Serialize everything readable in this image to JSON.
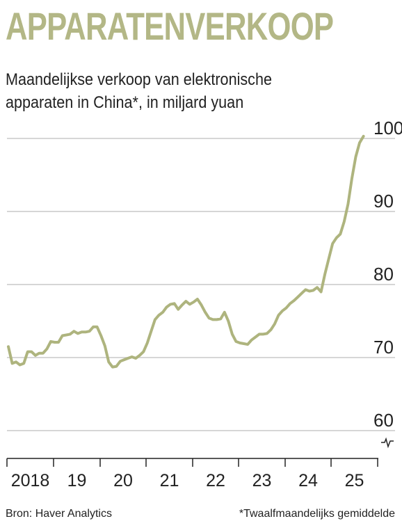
{
  "title": "APPARATENVERKOOP",
  "subtitle_line1": "Maandelijkse verkoop van elektronische",
  "subtitle_line2": "apparaten in China*, in miljard yuan",
  "source": "Bron: Haver Analytics",
  "footnote": "*Twaalfmaandelijks gemiddelde",
  "colors": {
    "title": "#b3b786",
    "line": "#aeb47e",
    "grid": "#c8c8c8",
    "axis": "#222222"
  },
  "chart_data": {
    "type": "line",
    "title": "",
    "xlabel": "",
    "ylabel": "",
    "ylim": [
      60,
      101
    ],
    "y_ticks": [
      100,
      90,
      80,
      70,
      60
    ],
    "y_axis_break_marker": true,
    "x_year_labels": [
      "2018",
      "19",
      "20",
      "21",
      "22",
      "23",
      "24",
      "25"
    ],
    "grid": true,
    "series": [
      {
        "x_start": "2018-01",
        "frequency": "monthly",
        "values": [
          71.5,
          69.2,
          69.4,
          69.0,
          69.2,
          70.8,
          70.8,
          70.3,
          70.6,
          70.6,
          71.2,
          72.2,
          72.1,
          72.1,
          73.0,
          73.1,
          73.2,
          73.6,
          73.3,
          73.5,
          73.5,
          73.6,
          74.2,
          74.2,
          73.0,
          71.6,
          69.4,
          68.7,
          68.8,
          69.5,
          69.7,
          69.9,
          70.1,
          69.9,
          70.3,
          70.8,
          72.0,
          73.6,
          75.2,
          75.8,
          76.2,
          76.9,
          77.3,
          77.4,
          76.6,
          77.2,
          77.7,
          77.3,
          77.6,
          78.0,
          77.2,
          76.2,
          75.4,
          75.2,
          75.2,
          75.3,
          76.2,
          75.0,
          73.2,
          72.2,
          72.0,
          71.9,
          71.8,
          72.4,
          72.8,
          73.2,
          73.2,
          73.3,
          73.8,
          74.6,
          75.8,
          76.4,
          76.8,
          77.4,
          77.8,
          78.3,
          78.8,
          79.3,
          79.1,
          79.2,
          79.6,
          79.0,
          81.4,
          83.5,
          85.6,
          86.4,
          86.9,
          88.6,
          91.0,
          94.5,
          97.5,
          99.4,
          100.3
        ]
      }
    ]
  }
}
